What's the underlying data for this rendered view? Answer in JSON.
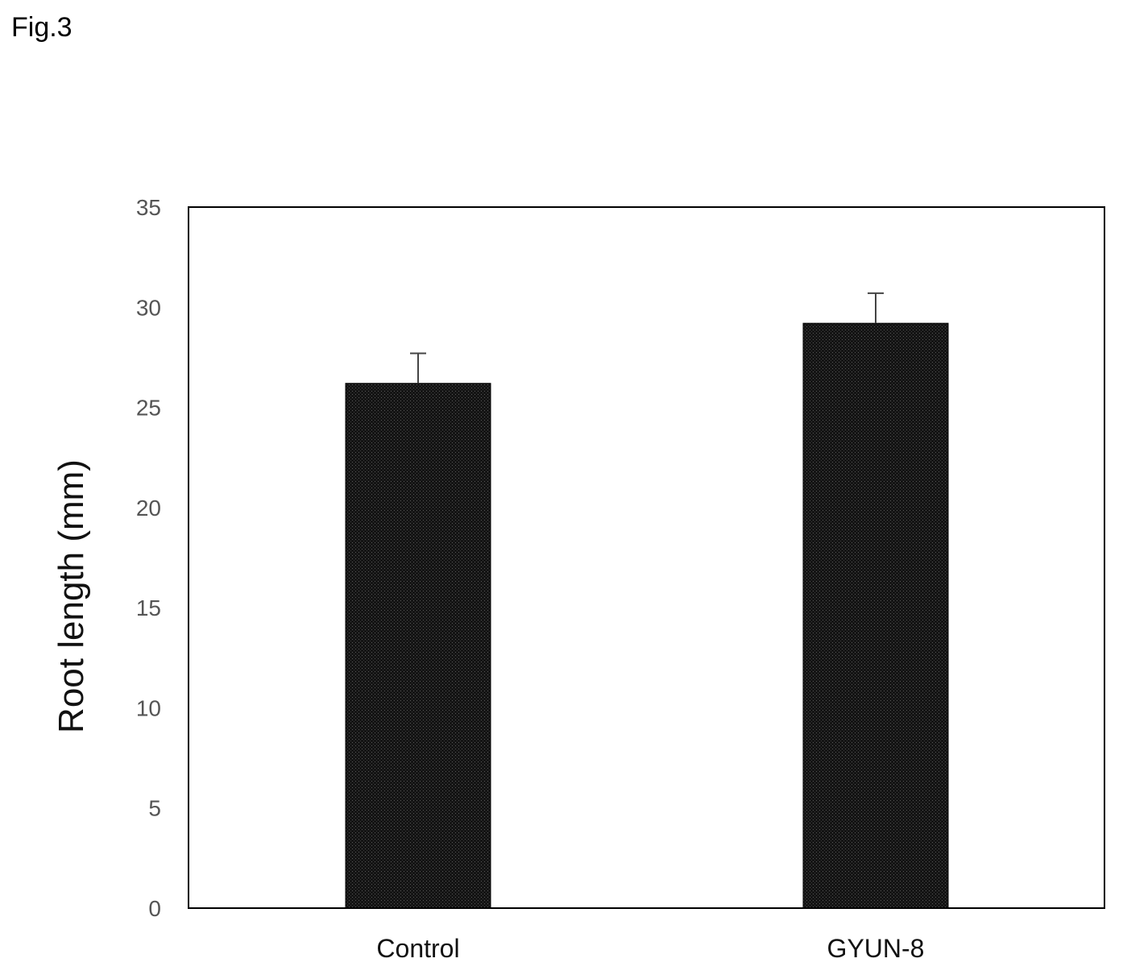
{
  "figure_label": "Fig.3",
  "colors": {
    "bar_fill": "#141414",
    "axis": "#000000",
    "error_bar": "#444444"
  },
  "chart_data": {
    "type": "bar",
    "title": "",
    "xlabel": "",
    "ylabel": "Root length (mm)",
    "categories": [
      "Control",
      "GYUN-8"
    ],
    "values": [
      26.2,
      29.2
    ],
    "errors": [
      1.5,
      1.5
    ],
    "ylim": [
      0,
      35
    ],
    "yticks": [
      0,
      5,
      10,
      15,
      20,
      25,
      30,
      35
    ],
    "grid": false,
    "legend": "none"
  }
}
